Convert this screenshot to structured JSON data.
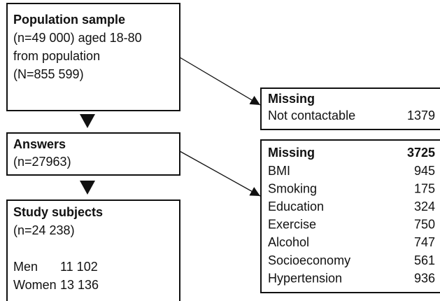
{
  "population": {
    "title": "Population sample",
    "lines": [
      "(n=49 000) aged 18-80",
      "from population",
      "(N=855 599)"
    ]
  },
  "answers": {
    "title": "Answers",
    "count": "(n=27963)"
  },
  "study": {
    "title": "Study subjects",
    "count": "(n=24 238)",
    "rows": [
      [
        "Men",
        "11 102"
      ],
      [
        "Women",
        "13 136"
      ]
    ]
  },
  "missing_contact": {
    "title": "Missing",
    "rows": [
      [
        "Not contactable",
        "1379"
      ]
    ]
  },
  "missing_data": {
    "title": "Missing",
    "total": "3725",
    "rows": [
      [
        "BMI",
        "945"
      ],
      [
        "Smoking",
        "175"
      ],
      [
        "Education",
        "324"
      ],
      [
        "Exercise",
        "750"
      ],
      [
        "Alcohol",
        "747"
      ],
      [
        "Socioeconomy",
        "561"
      ],
      [
        "Hypertension",
        "936"
      ]
    ]
  }
}
